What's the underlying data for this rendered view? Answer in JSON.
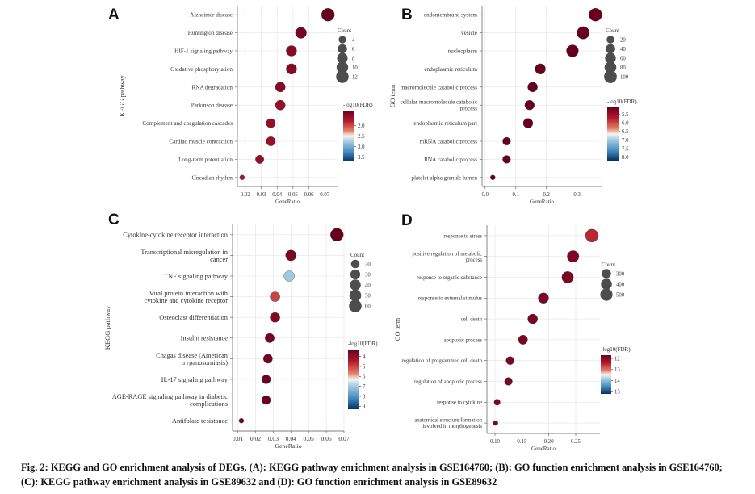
{
  "caption": "Fig. 2: KEGG and GO enrichment analysis of DEGs, (A): KEGG pathway enrichment analysis in GSE164760; (B): GO function enrichment analysis in GSE164760; (C): KEGG pathway enrichment analysis in GSE89632 and (D): GO function enrichment analysis in GSE89632",
  "chart_data": [
    {
      "panel": "A",
      "type": "scatter",
      "xlabel": "GeneRatio",
      "ylabel": "KEGG pathway",
      "xlim": [
        0.015,
        0.078
      ],
      "xticks": [
        "0.02",
        "0.03",
        "0.04",
        "0.05",
        "0.06",
        "0.07"
      ],
      "categories": [
        "Alzheimer disease",
        "Huntington disease",
        "HIF-1 signaling pathway",
        "Oxidative phosphorylation",
        "RNA degradation",
        "Parkinson disease",
        "Complement and coagulation cascades",
        "Cardiac muscle contraction",
        "Long-term potentiation",
        "Circadian rhythm"
      ],
      "x": [
        0.072,
        0.055,
        0.049,
        0.049,
        0.042,
        0.042,
        0.036,
        0.036,
        0.029,
        0.018
      ],
      "count": [
        13,
        9,
        8,
        8,
        7,
        7,
        6,
        6,
        5,
        3
      ],
      "fdr": [
        1.3,
        1.4,
        1.5,
        1.5,
        1.5,
        1.6,
        1.6,
        1.6,
        1.6,
        1.7
      ],
      "size_legend": {
        "title": "Count",
        "values": [
          "4",
          "6",
          "8",
          "10",
          "12"
        ]
      },
      "color_legend": {
        "title": "-log10(FDR)",
        "ticks": [
          "2.0",
          "2.5",
          "3.0",
          "3.5"
        ],
        "min": 1.3,
        "max": 3.7
      },
      "grid": true
    },
    {
      "panel": "B",
      "type": "scatter",
      "xlabel": "GeneRatio",
      "ylabel": "GO term",
      "xlim": [
        -0.01,
        0.38
      ],
      "xticks": [
        "0.0",
        "0.1",
        "0.2",
        "0.3"
      ],
      "categories": [
        "endomembrane system",
        "vesicle",
        "nucleoplasm",
        "endoplasmic reticulum",
        "macromolecule catabolic process",
        "cellular macromolecule catabolic process",
        "endoplasmic reticulum part",
        "mRNA catabolic process",
        "RNA catabolic process",
        "platelet alpha granule lumen"
      ],
      "x": [
        0.36,
        0.32,
        0.285,
        0.18,
        0.155,
        0.145,
        0.14,
        0.07,
        0.07,
        0.025
      ],
      "count": [
        105,
        95,
        85,
        55,
        45,
        42,
        42,
        22,
        22,
        8
      ],
      "fdr": [
        5.1,
        5.1,
        5.1,
        5.1,
        5.1,
        5.1,
        5.1,
        5.1,
        5.1,
        5.1
      ],
      "size_legend": {
        "title": "Count",
        "values": [
          "20",
          "40",
          "60",
          "80",
          "100"
        ]
      },
      "color_legend": {
        "title": "-log10(FDR)",
        "ticks": [
          "5.5",
          "6.0",
          "6.5",
          "7.0",
          "7.5",
          "8.0"
        ],
        "min": 5.1,
        "max": 8.2
      },
      "grid": true
    },
    {
      "panel": "C",
      "type": "scatter",
      "xlabel": "GeneRatio",
      "ylabel": "KEGG pathway",
      "xlim": [
        0.007,
        0.07
      ],
      "xticks": [
        "0.01",
        "0.02",
        "0.03",
        "0.04",
        "0.05",
        "0.06",
        "0.07"
      ],
      "categories": [
        "Cytokine-cytokine receptor interaction",
        "Transcriptional misregulation in cancer",
        "TNF signaling pathway",
        "Viral protein interaction with cytokine and cytokine receptor",
        "Osteoclast differentiation",
        "Insulin resistance",
        "Chagas disease (American trypanosomiasis)",
        "IL-17 signaling pathway",
        "AGE-RAGE signaling pathway in diabetic complications",
        "Antifolate resistance"
      ],
      "x": [
        0.066,
        0.04,
        0.039,
        0.031,
        0.031,
        0.028,
        0.027,
        0.026,
        0.026,
        0.012
      ],
      "count": [
        65,
        38,
        36,
        30,
        30,
        25,
        24,
        22,
        22,
        8
      ],
      "fdr": [
        3.3,
        3.6,
        7.0,
        5.0,
        3.7,
        3.5,
        3.5,
        3.4,
        3.4,
        3.5
      ],
      "size_legend": {
        "title": "Count",
        "values": [
          "20",
          "30",
          "40",
          "50",
          "60"
        ]
      },
      "color_legend": {
        "title": "-log10(FDR)",
        "ticks": [
          "4",
          "5",
          "6",
          "7",
          "8",
          "9"
        ],
        "min": 3.3,
        "max": 9.3
      },
      "grid": true
    },
    {
      "panel": "D",
      "type": "scatter",
      "xlabel": "GeneRatio",
      "ylabel": "GO term",
      "xlim": [
        0.085,
        0.295
      ],
      "xticks": [
        "0.10",
        "0.15",
        "0.20",
        "0.25"
      ],
      "categories": [
        "response to stress",
        "positive regulation of metabolic process",
        "response to organic substance",
        "response to external stimulus",
        "cell death",
        "apoptotic process",
        "regulation of programmed cell death",
        "regulation of apoptotic process",
        "response to cytokine",
        "anatomical structure formation involved in morphogenesis"
      ],
      "x": [
        0.28,
        0.245,
        0.235,
        0.19,
        0.17,
        0.152,
        0.128,
        0.125,
        0.104,
        0.101
      ],
      "count": [
        560,
        460,
        450,
        370,
        330,
        300,
        250,
        240,
        200,
        190
      ],
      "fdr": [
        12.5,
        11.9,
        11.9,
        11.9,
        11.9,
        11.9,
        11.9,
        11.9,
        11.9,
        11.9
      ],
      "size_legend": {
        "title": "Count",
        "values": [
          "300",
          "400",
          "500"
        ]
      },
      "color_legend": {
        "title": "-log10(FDR)",
        "ticks": [
          "12",
          "13",
          "14",
          "15"
        ],
        "min": 11.7,
        "max": 15.2
      },
      "grid": true
    }
  ]
}
